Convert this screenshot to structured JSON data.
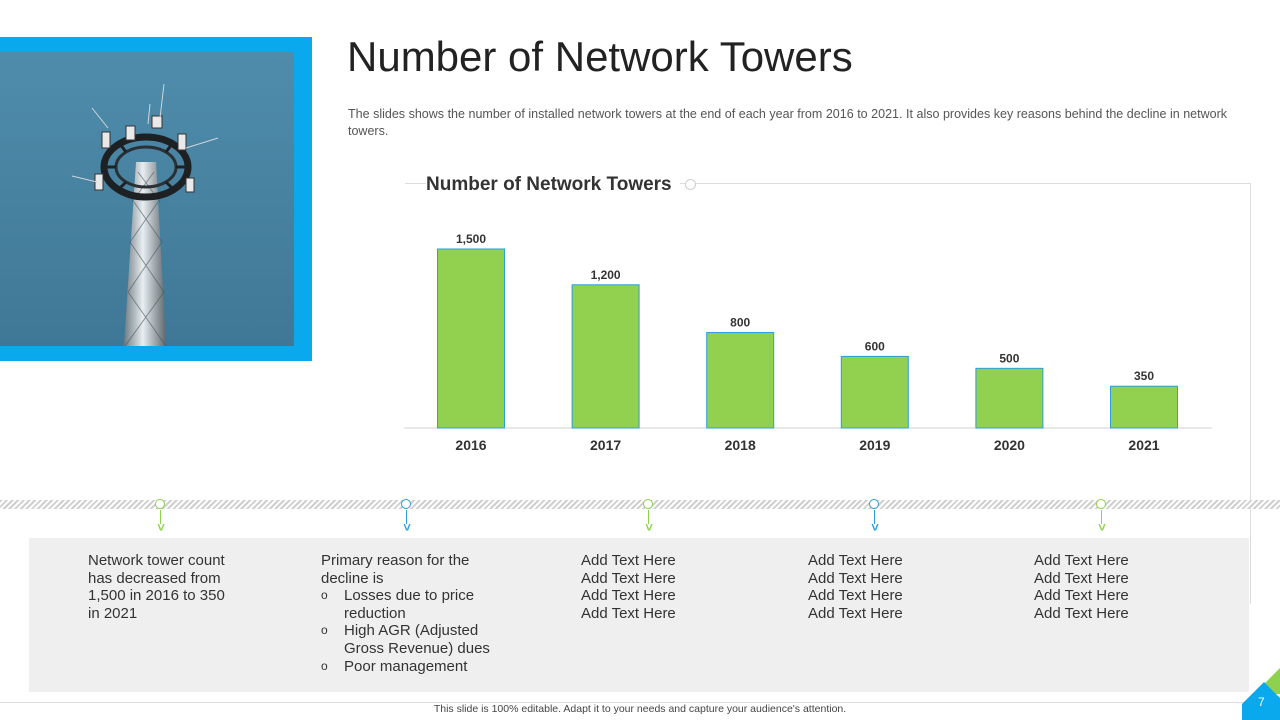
{
  "slide": {
    "title": "Number of Network Towers",
    "subtitle": "The slides shows the number of installed network towers at the end of each year from 2016 to 2021. It also provides key reasons behind the decline in network towers.",
    "footer": "This slide is 100% editable. Adapt it to your needs and capture your audience's attention.",
    "page_number": "7",
    "image_icon": "network-tower-photo"
  },
  "chart_data": {
    "type": "bar",
    "title": "Number of Network Towers",
    "categories": [
      "2016",
      "2017",
      "2018",
      "2019",
      "2020",
      "2021"
    ],
    "values": [
      1500,
      1200,
      800,
      600,
      500,
      350
    ],
    "labels": [
      "1,500",
      "1,200",
      "800",
      "600",
      "500",
      "350"
    ],
    "xlabel": "",
    "ylabel": "",
    "ylim": [
      0,
      1500
    ],
    "grid": false,
    "legend": "none"
  },
  "timeline": {
    "colors": [
      "#8ed14e",
      "#2b9fd9",
      "#8ed14e",
      "#2b9fd9",
      "#8ed14e"
    ],
    "columns": [
      {
        "lines": [
          "Network tower count",
          "has decreased from",
          "1,500 in 2016 to 350",
          "in 2021"
        ]
      },
      {
        "lines": [
          "Primary reason for the",
          "decline is"
        ],
        "bullet_symbol": "o",
        "bullets": [
          [
            "Losses due to price",
            "reduction"
          ],
          [
            "High AGR (Adjusted",
            "Gross Revenue) dues"
          ],
          [
            "Poor management"
          ]
        ]
      },
      {
        "lines": [
          "Add Text Here",
          "Add Text Here",
          "Add Text Here",
          "Add Text Here"
        ]
      },
      {
        "lines": [
          "Add Text Here",
          "Add Text Here",
          "Add Text Here",
          "Add Text Here"
        ]
      },
      {
        "lines": [
          "Add Text Here",
          "Add Text Here",
          "Add Text Here",
          "Add Text Here"
        ]
      }
    ]
  },
  "colors": {
    "accent_blue": "#0aa8ec",
    "bar_green": "#92d050",
    "bar_stroke": "#2b9fd9",
    "panel_gray": "#efefef"
  }
}
